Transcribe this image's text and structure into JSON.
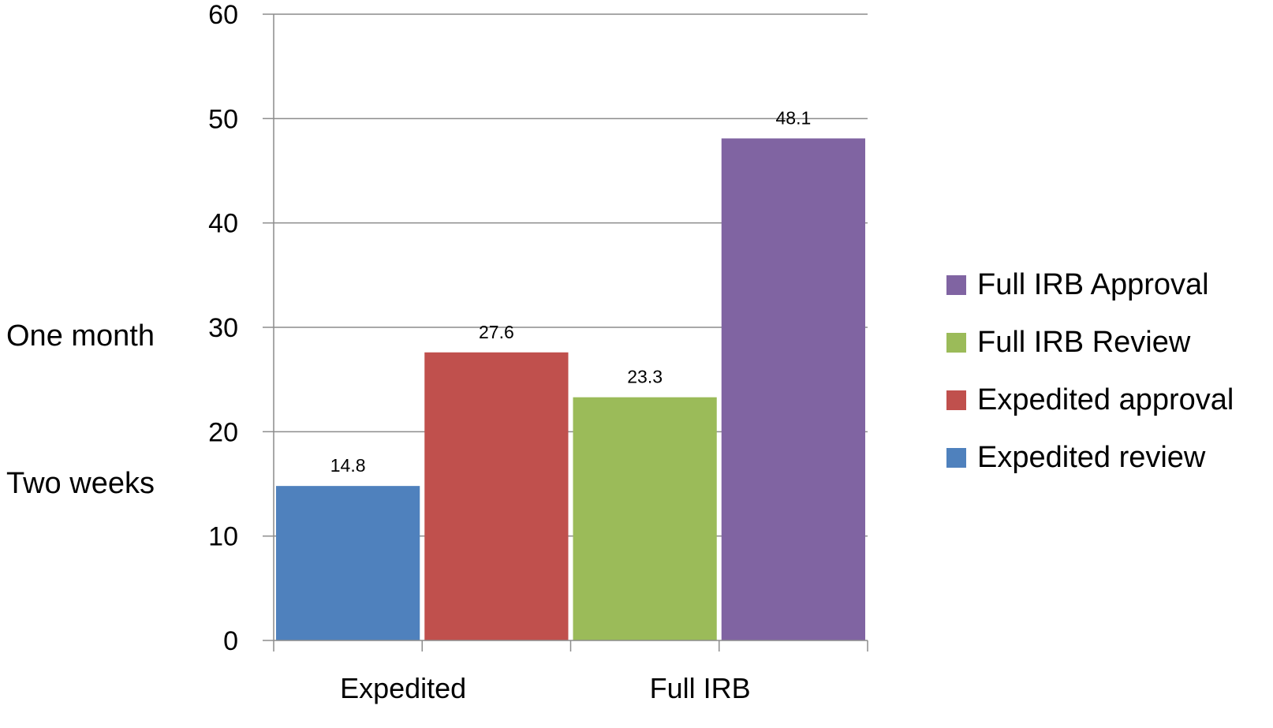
{
  "chart_data": {
    "type": "bar",
    "categories": [
      "Expedited",
      "Full IRB"
    ],
    "series": [
      {
        "name": "Expedited review",
        "values": [
          14.8,
          null
        ],
        "color": "#4F81BD"
      },
      {
        "name": "Expedited approval",
        "values": [
          27.6,
          null
        ],
        "color": "#C0504D"
      },
      {
        "name": "Full IRB Review",
        "values": [
          null,
          23.3
        ],
        "color": "#9BBB59"
      },
      {
        "name": "Full IRB Approval",
        "values": [
          null,
          48.1
        ],
        "color": "#8064A2"
      }
    ],
    "ylim": [
      0,
      60
    ],
    "yticks": [
      0,
      10,
      20,
      30,
      40,
      50,
      60
    ],
    "grid": true,
    "legend_position": "right",
    "legend_order": [
      "Full IRB Approval",
      "Full IRB Review",
      "Expedited approval",
      "Expedited review"
    ],
    "annotations": [
      {
        "text": "One month",
        "y": 30
      },
      {
        "text": "Two weeks",
        "y": 15
      }
    ]
  }
}
